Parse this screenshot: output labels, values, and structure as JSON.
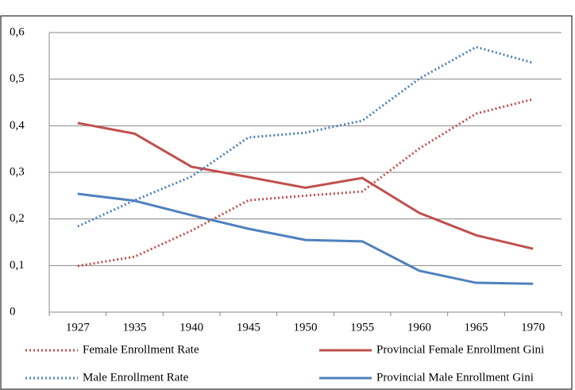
{
  "chart_data": {
    "type": "line",
    "categories": [
      "1927",
      "1935",
      "1940",
      "1945",
      "1950",
      "1955",
      "1960",
      "1965",
      "1970"
    ],
    "series": [
      {
        "name": "Female Enrollment Rate",
        "color": "#c0504d",
        "style": "dotted",
        "values": [
          0.099,
          0.119,
          0.175,
          0.24,
          0.25,
          0.259,
          0.351,
          0.426,
          0.457
        ]
      },
      {
        "name": "Provincial Female Enrollment Gini",
        "color": "#c0504d",
        "style": "solid",
        "values": [
          0.406,
          0.383,
          0.312,
          0.29,
          0.267,
          0.288,
          0.213,
          0.165,
          0.136
        ]
      },
      {
        "name": "Male Enrollment Rate",
        "color": "#4f81bd",
        "style": "dotted",
        "values": [
          0.184,
          0.24,
          0.291,
          0.375,
          0.385,
          0.411,
          0.501,
          0.569,
          0.535
        ]
      },
      {
        "name": "Provincial Male Enrollment Gini",
        "color": "#4f81bd",
        "style": "solid",
        "values": [
          0.254,
          0.239,
          0.208,
          0.179,
          0.155,
          0.152,
          0.089,
          0.063,
          0.061
        ]
      }
    ],
    "ylim": [
      0,
      0.6
    ],
    "yticks": [
      0,
      {
        "value": 0.1,
        "label": "0,1"
      },
      {
        "value": 0.2,
        "label": "0,2"
      },
      {
        "value": 0.3,
        "label": "0,3"
      },
      {
        "value": 0.4,
        "label": "0,4"
      },
      {
        "value": 0.5,
        "label": "0,5"
      },
      {
        "value": 0.6,
        "label": "0,6"
      }
    ],
    "grid": true
  }
}
